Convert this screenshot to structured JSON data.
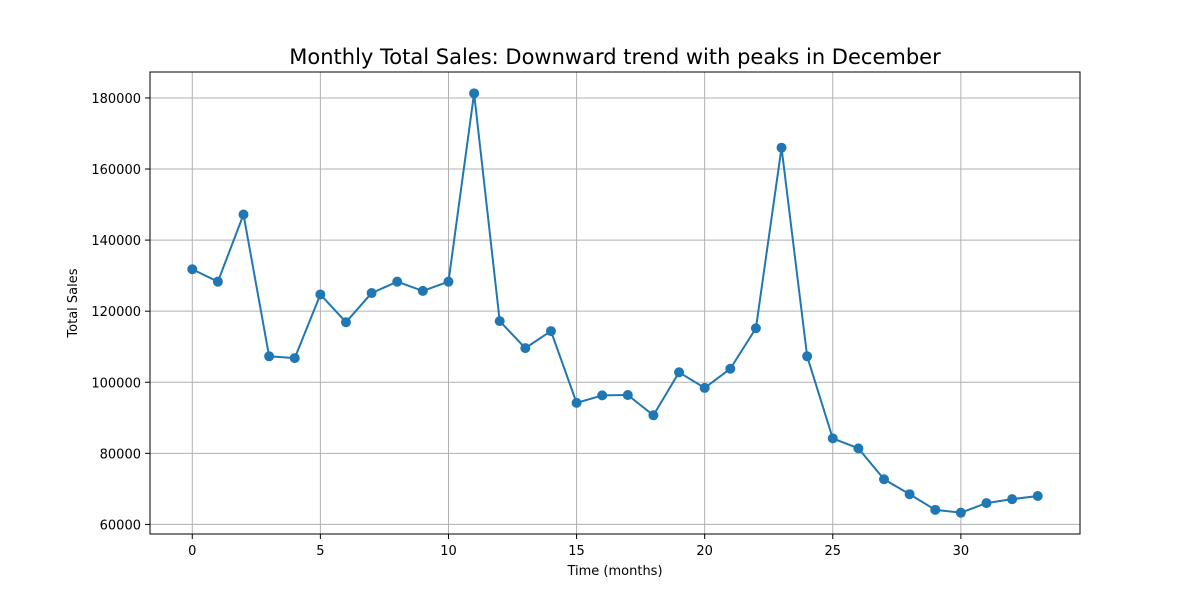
{
  "chart_data": {
    "type": "line",
    "title": "Monthly Total Sales: Downward trend with peaks in December",
    "xlabel": "Time (months)",
    "ylabel": "Total Sales",
    "xlim": [
      -1.65,
      34.65
    ],
    "ylim": [
      57300,
      187300
    ],
    "xticks": [
      0,
      5,
      10,
      15,
      20,
      25,
      30
    ],
    "yticks": [
      60000,
      80000,
      100000,
      120000,
      140000,
      160000,
      180000
    ],
    "grid": true,
    "color": "#1f77b4",
    "marker": "circle",
    "series": [
      {
        "x": [
          0,
          1,
          2,
          3,
          4,
          5,
          6,
          7,
          8,
          9,
          10,
          11,
          12,
          13,
          14,
          15,
          16,
          17,
          18,
          19,
          20,
          21,
          22,
          23,
          24,
          25,
          26,
          27,
          28,
          29,
          30,
          31,
          32,
          33
        ],
        "y": [
          131800,
          128300,
          147200,
          107300,
          106800,
          124700,
          116900,
          125100,
          128300,
          125700,
          128300,
          181300,
          117200,
          109600,
          114400,
          94200,
          96300,
          96400,
          90700,
          102800,
          98400,
          103800,
          115200,
          166000,
          107300,
          84200,
          81400,
          72700,
          68500,
          64100,
          63300,
          66000,
          67100,
          68000
        ]
      }
    ]
  }
}
